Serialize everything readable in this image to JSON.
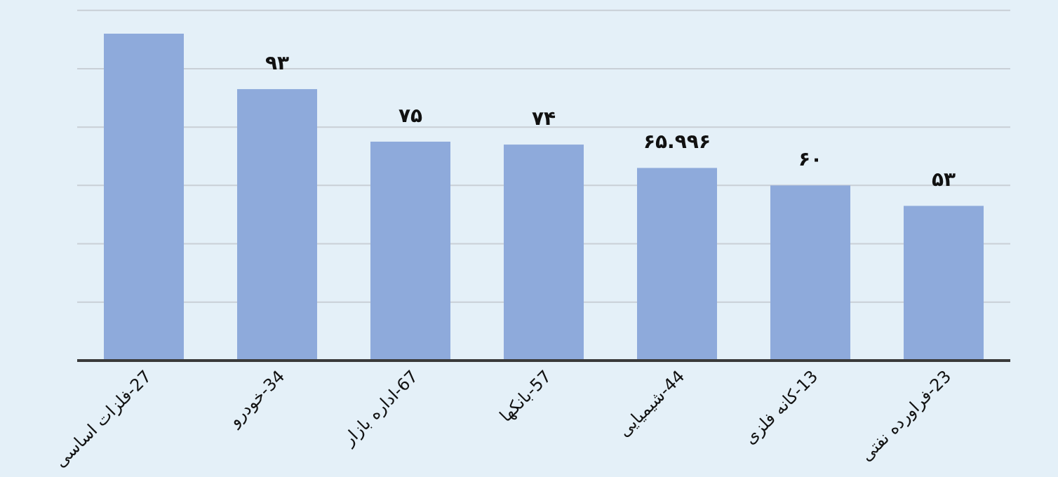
{
  "chart_data": {
    "type": "bar",
    "categories": [
      "27-فلزات اساسی",
      "34-خودرو",
      "67-اداره بازار",
      "57-بانکها",
      "44-شیمیایی",
      "13-کانه فلزی",
      "23-فراورده نفتی"
    ],
    "values": [
      112,
      93,
      75,
      74,
      65.996,
      60,
      53
    ],
    "value_labels": [
      null,
      "۹۳",
      "۷۵",
      "۷۴",
      "۶۵.۹۹۶",
      "۶۰",
      "۵۳"
    ],
    "color": "#8eaadb",
    "grid": "y",
    "tick_labels": "x"
  }
}
